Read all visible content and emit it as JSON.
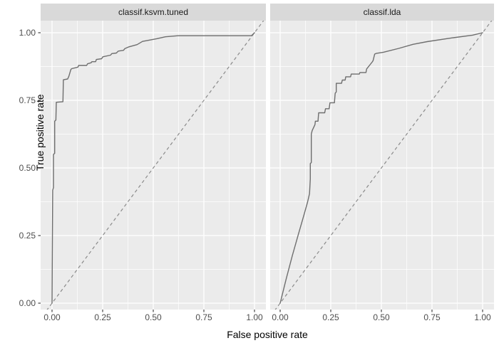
{
  "figure": {
    "x_axis_title": "False positive rate",
    "y_axis_title": "True positive rate"
  },
  "style": {
    "panel_background": "#ebebeb",
    "strip_background": "#d9d9d9",
    "grid_major_color": "#ffffff",
    "grid_minor_color": "#ffffff",
    "curve_color": "#6e6e6e",
    "reference_line_color": "#8a8a8a",
    "tick_mark_color": "#333333",
    "tick_label_color": "#4d4d4d",
    "axis_title_color": "#000000",
    "strip_text_color": "#1a1a1a"
  },
  "chart_data": [
    {
      "type": "line",
      "title": "classif.ksvm.tuned",
      "xlabel": "False positive rate",
      "ylabel": "True positive rate",
      "xlim": [
        0,
        1
      ],
      "ylim": [
        0,
        1
      ],
      "grid": true,
      "legend": "none",
      "x_ticks": [
        0,
        0.25,
        0.5,
        0.75,
        1
      ],
      "y_ticks": [
        0,
        0.25,
        0.5,
        0.75,
        1
      ],
      "x_tick_labels": [
        "0.00",
        "0.25",
        "0.50",
        "0.75",
        "1.00"
      ],
      "y_tick_labels": [
        "0.00",
        "0.25",
        "0.50",
        "0.75",
        "1.00"
      ],
      "x_minor_ticks": [
        0.125,
        0.375,
        0.625,
        0.875
      ],
      "y_minor_ticks": [
        0.125,
        0.375,
        0.625,
        0.875
      ],
      "reference_line": {
        "name": "chance-diagonal",
        "style": "dashed",
        "from": [
          0,
          0
        ],
        "to": [
          1,
          1
        ]
      },
      "series": [
        {
          "name": "ROC curve",
          "style": "solid",
          "points": [
            [
              0,
              0
            ],
            [
              0.003,
              0.418
            ],
            [
              0.007,
              0.427
            ],
            [
              0.007,
              0.55
            ],
            [
              0.013,
              0.554
            ],
            [
              0.013,
              0.673
            ],
            [
              0.019,
              0.677
            ],
            [
              0.021,
              0.743
            ],
            [
              0.054,
              0.745
            ],
            [
              0.056,
              0.826
            ],
            [
              0.077,
              0.829
            ],
            [
              0.083,
              0.839
            ],
            [
              0.093,
              0.864
            ],
            [
              0.097,
              0.867
            ],
            [
              0.128,
              0.873
            ],
            [
              0.131,
              0.879
            ],
            [
              0.171,
              0.879
            ],
            [
              0.175,
              0.885
            ],
            [
              0.193,
              0.889
            ],
            [
              0.197,
              0.893
            ],
            [
              0.215,
              0.893
            ],
            [
              0.219,
              0.901
            ],
            [
              0.245,
              0.904
            ],
            [
              0.251,
              0.911
            ],
            [
              0.289,
              0.917
            ],
            [
              0.295,
              0.923
            ],
            [
              0.318,
              0.925
            ],
            [
              0.327,
              0.932
            ],
            [
              0.353,
              0.935
            ],
            [
              0.359,
              0.941
            ],
            [
              0.377,
              0.947
            ],
            [
              0.42,
              0.956
            ],
            [
              0.447,
              0.968
            ],
            [
              0.517,
              0.978
            ],
            [
              0.56,
              0.985
            ],
            [
              0.623,
              0.989
            ],
            [
              0.985,
              0.989
            ],
            [
              1,
              1
            ]
          ]
        }
      ]
    },
    {
      "type": "line",
      "title": "classif.lda",
      "xlabel": "False positive rate",
      "ylabel": "True positive rate",
      "xlim": [
        0,
        1
      ],
      "ylim": [
        0,
        1
      ],
      "grid": true,
      "legend": "none",
      "x_ticks": [
        0,
        0.25,
        0.5,
        0.75,
        1
      ],
      "y_ticks": [
        0,
        0.25,
        0.5,
        0.75,
        1
      ],
      "x_tick_labels": [
        "0.00",
        "0.25",
        "0.50",
        "0.75",
        "1.00"
      ],
      "y_tick_labels": [
        "0.00",
        "0.25",
        "0.50",
        "0.75",
        "1.00"
      ],
      "x_minor_ticks": [
        0.125,
        0.375,
        0.625,
        0.875
      ],
      "y_minor_ticks": [
        0.125,
        0.375,
        0.625,
        0.875
      ],
      "reference_line": {
        "name": "chance-diagonal",
        "style": "dashed",
        "from": [
          0,
          0
        ],
        "to": [
          1,
          1
        ]
      },
      "series": [
        {
          "name": "ROC curve",
          "style": "solid",
          "points": [
            [
              0,
              0
            ],
            [
              0.03,
              0.09
            ],
            [
              0.06,
              0.175
            ],
            [
              0.09,
              0.255
            ],
            [
              0.115,
              0.32
            ],
            [
              0.135,
              0.372
            ],
            [
              0.145,
              0.405
            ],
            [
              0.149,
              0.46
            ],
            [
              0.149,
              0.516
            ],
            [
              0.154,
              0.52
            ],
            [
              0.154,
              0.625
            ],
            [
              0.158,
              0.638
            ],
            [
              0.172,
              0.66
            ],
            [
              0.174,
              0.673
            ],
            [
              0.187,
              0.673
            ],
            [
              0.19,
              0.704
            ],
            [
              0.22,
              0.704
            ],
            [
              0.224,
              0.719
            ],
            [
              0.242,
              0.719
            ],
            [
              0.246,
              0.741
            ],
            [
              0.268,
              0.741
            ],
            [
              0.272,
              0.776
            ],
            [
              0.277,
              0.781
            ],
            [
              0.277,
              0.813
            ],
            [
              0.303,
              0.813
            ],
            [
              0.307,
              0.825
            ],
            [
              0.321,
              0.825
            ],
            [
              0.324,
              0.837
            ],
            [
              0.348,
              0.837
            ],
            [
              0.351,
              0.847
            ],
            [
              0.391,
              0.847
            ],
            [
              0.394,
              0.853
            ],
            [
              0.424,
              0.853
            ],
            [
              0.427,
              0.866
            ],
            [
              0.455,
              0.892
            ],
            [
              0.459,
              0.897
            ],
            [
              0.467,
              0.921
            ],
            [
              0.476,
              0.924
            ],
            [
              0.51,
              0.928
            ],
            [
              0.586,
              0.942
            ],
            [
              0.656,
              0.957
            ],
            [
              0.726,
              0.967
            ],
            [
              0.85,
              0.981
            ],
            [
              0.95,
              0.991
            ],
            [
              1,
              1
            ]
          ]
        }
      ]
    }
  ]
}
